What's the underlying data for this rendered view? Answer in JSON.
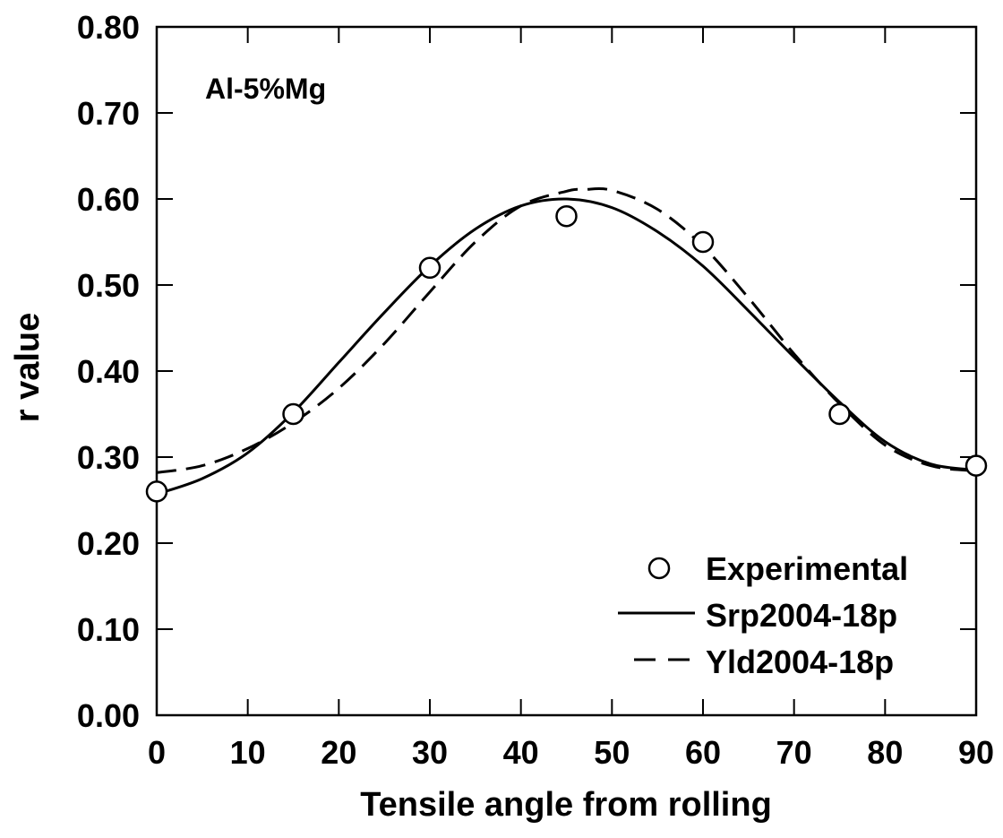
{
  "chart_data": {
    "type": "line",
    "title": "",
    "annotation": "Al-5%Mg",
    "xlabel": "Tensile angle from rolling",
    "ylabel": "r value",
    "xlim": [
      0,
      90
    ],
    "ylim": [
      0.0,
      0.8
    ],
    "x_ticks": [
      0,
      10,
      20,
      30,
      40,
      50,
      60,
      70,
      80,
      90
    ],
    "x_tick_labels": [
      "0",
      "10",
      "20",
      "30",
      "40",
      "50",
      "60",
      "70",
      "80",
      "90"
    ],
    "y_ticks": [
      0.0,
      0.1,
      0.2,
      0.3,
      0.4,
      0.5,
      0.6,
      0.7,
      0.8
    ],
    "y_tick_labels": [
      "0.00",
      "0.10",
      "0.20",
      "0.30",
      "0.40",
      "0.50",
      "0.60",
      "0.70",
      "0.80"
    ],
    "grid": false,
    "legend_position": "bottom-right",
    "series": [
      {
        "name": "Experimental",
        "style": "markers",
        "marker": "open-circle",
        "color": "#000000",
        "x": [
          0,
          15,
          30,
          45,
          60,
          75,
          90
        ],
        "y": [
          0.26,
          0.35,
          0.52,
          0.58,
          0.55,
          0.35,
          0.29
        ]
      },
      {
        "name": "Srp2004-18p",
        "style": "solid",
        "color": "#000000",
        "x": [
          0,
          5,
          10,
          15,
          20,
          25,
          30,
          35,
          40,
          45,
          50,
          55,
          60,
          65,
          70,
          75,
          80,
          85,
          90
        ],
        "y": [
          0.257,
          0.275,
          0.305,
          0.352,
          0.41,
          0.468,
          0.522,
          0.565,
          0.592,
          0.6,
          0.59,
          0.562,
          0.522,
          0.47,
          0.416,
          0.364,
          0.318,
          0.292,
          0.285
        ]
      },
      {
        "name": "Yld2004-18p",
        "style": "dashed",
        "color": "#000000",
        "x": [
          0,
          5,
          10,
          15,
          20,
          25,
          30,
          35,
          40,
          45,
          47,
          50,
          55,
          60,
          65,
          70,
          75,
          80,
          85,
          90
        ],
        "y": [
          0.282,
          0.29,
          0.31,
          0.34,
          0.38,
          0.432,
          0.492,
          0.55,
          0.592,
          0.609,
          0.611,
          0.61,
          0.588,
          0.545,
          0.485,
          0.42,
          0.362,
          0.314,
          0.29,
          0.284
        ]
      }
    ]
  }
}
